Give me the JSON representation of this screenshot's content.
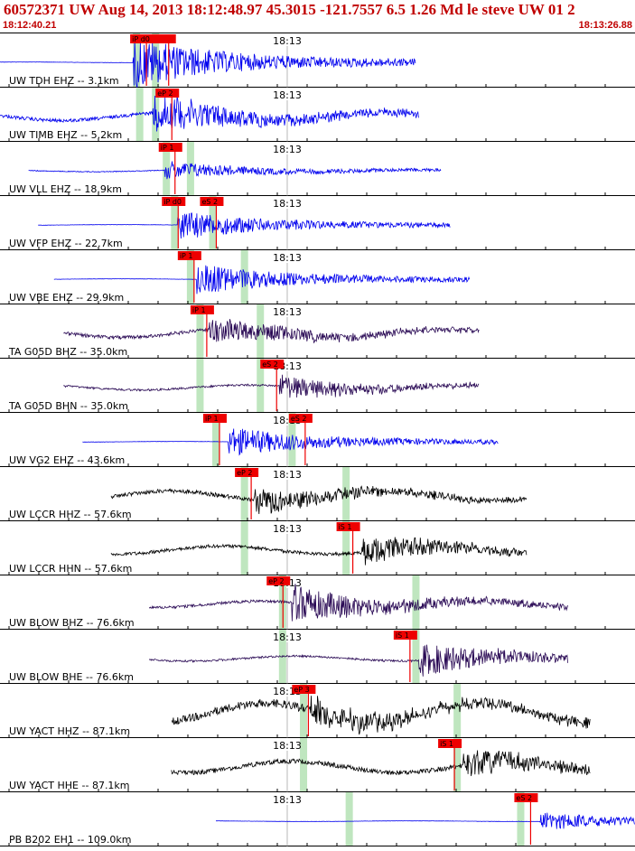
{
  "header": {
    "title": "60572371 UW Aug 14, 2013 18:12:48.97    45.3015 -121.7557  6.5 1.26 Md le steve UW 01   2",
    "start_time": "18:12:40.21",
    "end_time": "18:13:26.88"
  },
  "time_tick_label": "18:13",
  "colors": {
    "header_text": "#c00000",
    "trace_short_period": "#0000ee",
    "trace_broadband": "#2a0a55",
    "trace_strong": "#000000",
    "pick_flag": "#ee0000",
    "pick_band": "#bfe6bf"
  },
  "traces": [
    {
      "label": "UW TDH EHZ -- 3.1km",
      "color": "#0000ee",
      "start": 0.0,
      "end": 0.655,
      "amp": 0.95,
      "noise": 0.02,
      "signal_at": 0.21,
      "picks": [
        {
          "text": "iP d0",
          "x": 0.205
        },
        {
          "text": "",
          "x": 0.24
        }
      ],
      "bands": [
        0.215,
        0.245
      ]
    },
    {
      "label": "UW TIMB EHZ -- 5.2km",
      "color": "#0000ee",
      "start": 0.0,
      "end": 0.66,
      "amp": 0.75,
      "noise": 0.25,
      "signal_at": 0.24,
      "picks": [
        {
          "text": "eP 2",
          "x": 0.245
        }
      ],
      "bands": [
        0.22,
        0.245
      ]
    },
    {
      "label": "UW VLL EHZ -- 18.9km",
      "color": "#0000ee",
      "start": 0.045,
      "end": 0.695,
      "amp": 0.35,
      "noise": 0.06,
      "signal_at": 0.26,
      "picks": [
        {
          "text": "iP 1",
          "x": 0.25
        }
      ],
      "bands": [
        0.262,
        0.3
      ]
    },
    {
      "label": "UW VFP EHZ -- 22.7km",
      "color": "#0000ee",
      "start": 0.06,
      "end": 0.71,
      "amp": 0.55,
      "noise": 0.02,
      "signal_at": 0.28,
      "picks": [
        {
          "text": "iP d0",
          "x": 0.255
        },
        {
          "text": "eS 2",
          "x": 0.315
        }
      ],
      "bands": [
        0.275,
        0.335
      ]
    },
    {
      "label": "UW VBE EHZ -- 29.9km",
      "color": "#0000ee",
      "start": 0.085,
      "end": 0.74,
      "amp": 0.6,
      "noise": 0.02,
      "signal_at": 0.31,
      "picks": [
        {
          "text": "iP 1",
          "x": 0.28
        }
      ],
      "bands": [
        0.3,
        0.385
      ]
    },
    {
      "label": "TA G05D BHZ -- 35.0km",
      "color": "#2a0a55",
      "start": 0.1,
      "end": 0.755,
      "amp": 0.5,
      "noise": 0.25,
      "signal_at": 0.33,
      "picks": [
        {
          "text": "iP 1",
          "x": 0.3
        }
      ],
      "bands": [
        0.315,
        0.41
      ]
    },
    {
      "label": "TA G05D BHN -- 35.0km",
      "color": "#2a0a55",
      "start": 0.1,
      "end": 0.755,
      "amp": 0.45,
      "noise": 0.15,
      "signal_at": 0.44,
      "picks": [
        {
          "text": "eS 2",
          "x": 0.41
        }
      ],
      "bands": [
        0.315,
        0.41
      ]
    },
    {
      "label": "UW VG2 EHZ -- 43.6km",
      "color": "#0000ee",
      "start": 0.13,
      "end": 0.785,
      "amp": 0.55,
      "noise": 0.02,
      "signal_at": 0.36,
      "picks": [
        {
          "text": "iP 1",
          "x": 0.32
        },
        {
          "text": "eS 2",
          "x": 0.455
        }
      ],
      "bands": [
        0.34,
        0.46
      ]
    },
    {
      "label": "UW LCCR HHZ -- 57.6km",
      "color": "#000000",
      "start": 0.175,
      "end": 0.83,
      "amp": 0.5,
      "noise": 0.3,
      "signal_at": 0.4,
      "picks": [
        {
          "text": "eP 2",
          "x": 0.37
        }
      ],
      "bands": [
        0.385,
        0.545
      ]
    },
    {
      "label": "UW LCCR HHN -- 57.6km",
      "color": "#000000",
      "start": 0.175,
      "end": 0.83,
      "amp": 0.55,
      "noise": 0.25,
      "signal_at": 0.57,
      "picks": [
        {
          "text": "iS 1",
          "x": 0.53
        }
      ],
      "bands": [
        0.385,
        0.545
      ]
    },
    {
      "label": "UW BLOW BHZ -- 76.6km",
      "color": "#2a0a55",
      "start": 0.235,
      "end": 0.895,
      "amp": 0.7,
      "noise": 0.2,
      "signal_at": 0.46,
      "picks": [
        {
          "text": "eP 2",
          "x": 0.42
        }
      ],
      "bands": [
        0.445,
        0.655
      ]
    },
    {
      "label": "UW BLOW BHE -- 76.6km",
      "color": "#2a0a55",
      "start": 0.235,
      "end": 0.895,
      "amp": 0.6,
      "noise": 0.15,
      "signal_at": 0.66,
      "picks": [
        {
          "text": "iS 1",
          "x": 0.62
        }
      ],
      "bands": [
        0.445,
        0.655
      ]
    },
    {
      "label": "UW YACT HHZ -- 87.1km",
      "color": "#000000",
      "start": 0.27,
      "end": 0.93,
      "amp": 0.55,
      "noise": 0.6,
      "signal_at": 0.49,
      "picks": [
        {
          "text": "eP 3",
          "x": 0.46
        }
      ],
      "bands": [
        0.478,
        0.72
      ]
    },
    {
      "label": "UW YACT HHE -- 87.1km",
      "color": "#000000",
      "start": 0.27,
      "end": 0.93,
      "amp": 0.55,
      "noise": 0.35,
      "signal_at": 0.73,
      "picks": [
        {
          "text": "iS 1",
          "x": 0.69
        }
      ],
      "bands": [
        0.478,
        0.72
      ]
    },
    {
      "label": "PB B202 EH1 -- 109.0km",
      "color": "#0000ee",
      "start": 0.34,
      "end": 1.0,
      "amp": 0.35,
      "noise": 0.02,
      "signal_at": 0.85,
      "picks": [
        {
          "text": "eS 2",
          "x": 0.81
        }
      ],
      "bands": [
        0.55,
        0.82
      ]
    }
  ]
}
